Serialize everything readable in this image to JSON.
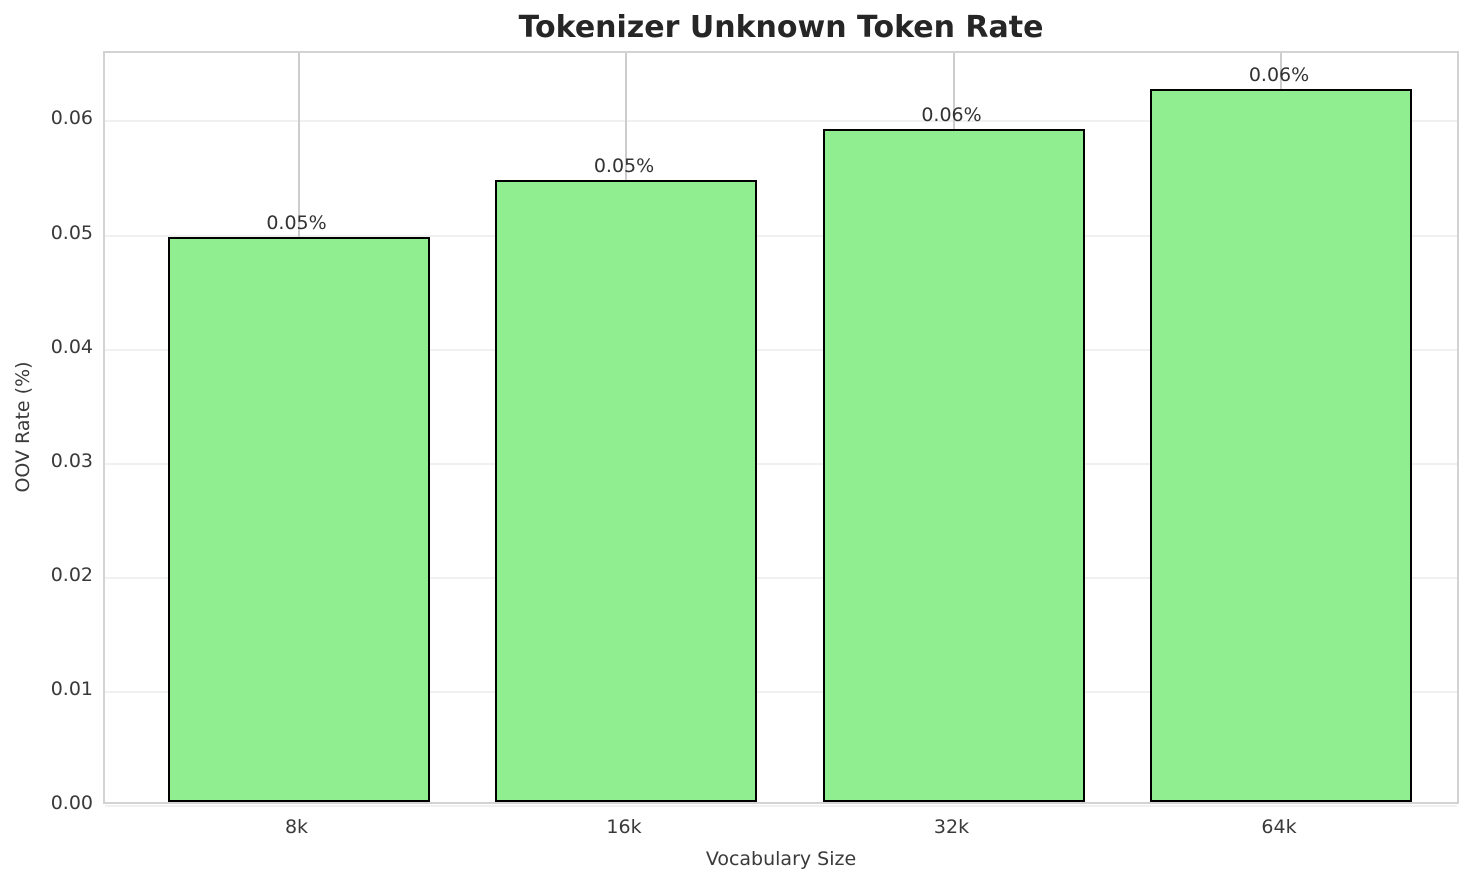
{
  "chart_data": {
    "type": "bar",
    "title": "Tokenizer Unknown Token Rate",
    "xlabel": "Vocabulary Size",
    "ylabel": "OOV Rate (%)",
    "categories": [
      "8k",
      "16k",
      "32k",
      "64k"
    ],
    "values": [
      0.0495,
      0.0545,
      0.059,
      0.0625
    ],
    "bar_labels": [
      "0.05%",
      "0.05%",
      "0.06%",
      "0.06%"
    ],
    "y_ticks": [
      "0.00",
      "0.01",
      "0.02",
      "0.03",
      "0.04",
      "0.05",
      "0.06"
    ],
    "y_tick_values": [
      0.0,
      0.01,
      0.02,
      0.03,
      0.04,
      0.05,
      0.06
    ],
    "ylim": [
      0,
      0.066
    ],
    "grid": true,
    "legend_position": "none",
    "colors": {
      "bar_fill": "#90EE90",
      "bar_edge": "#000000",
      "grid_horizontal": "#f0f0f0",
      "grid_vertical": "#cdcdcd",
      "spine": "#d3d3d3",
      "title_text": "#262626",
      "tick_text": "#3a3a3a",
      "annotation_text": "#333333",
      "background": "#ffffff"
    }
  }
}
